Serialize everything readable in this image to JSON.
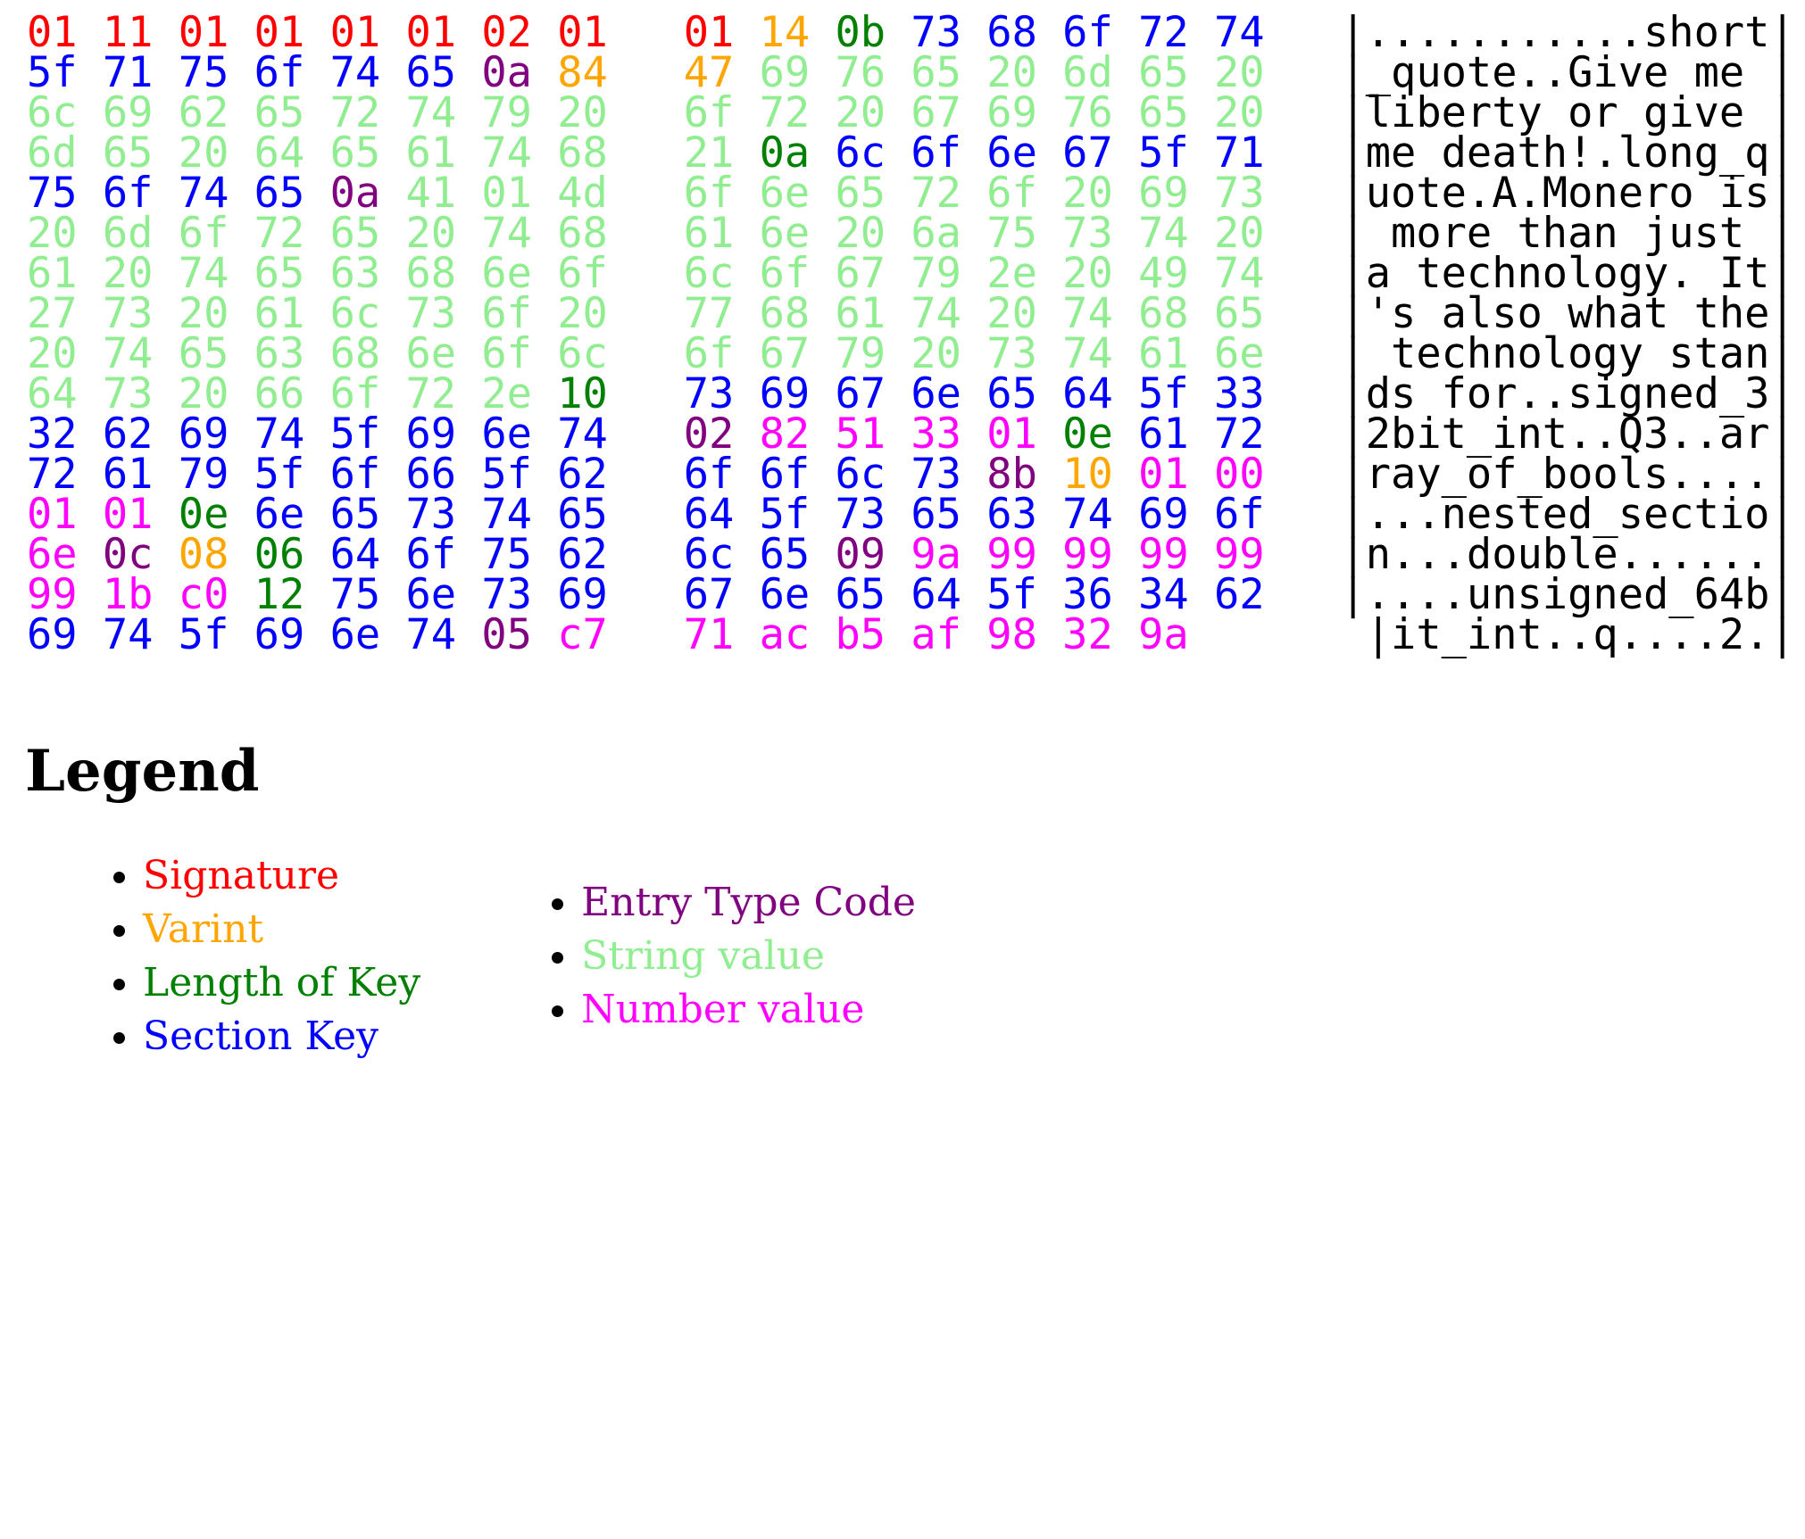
{
  "palette": {
    "sig": "#ff0000",
    "var": "#ffa500",
    "len": "#008000",
    "key": "#0000ff",
    "type": "#800080",
    "str": "#90ee90",
    "num": "#ff00ff",
    "ascii": "#000000"
  },
  "hexdump": {
    "rows": [
      {
        "bytes": [
          "01:sig",
          "11:sig",
          "01:sig",
          "01:sig",
          "01:sig",
          "01:sig",
          "02:sig",
          "01:sig",
          "01:sig",
          "14:var",
          "0b:len",
          "73:key",
          "68:key",
          "6f:key",
          "72:key",
          "74:key"
        ],
        "ascii": "|...........short|"
      },
      {
        "bytes": [
          "5f:key",
          "71:key",
          "75:key",
          "6f:key",
          "74:key",
          "65:key",
          "0a:type",
          "84:var",
          "47:var",
          "69:str",
          "76:str",
          "65:str",
          "20:str",
          "6d:str",
          "65:str",
          "20:str"
        ],
        "ascii": "|_quote..Give me |"
      },
      {
        "bytes": [
          "6c:str",
          "69:str",
          "62:str",
          "65:str",
          "72:str",
          "74:str",
          "79:str",
          "20:str",
          "6f:str",
          "72:str",
          "20:str",
          "67:str",
          "69:str",
          "76:str",
          "65:str",
          "20:str"
        ],
        "ascii": "|liberty or give |"
      },
      {
        "bytes": [
          "6d:str",
          "65:str",
          "20:str",
          "64:str",
          "65:str",
          "61:str",
          "74:str",
          "68:str",
          "21:str",
          "0a:len",
          "6c:key",
          "6f:key",
          "6e:key",
          "67:key",
          "5f:key",
          "71:key"
        ],
        "ascii": "|me death!.long_q|"
      },
      {
        "bytes": [
          "75:key",
          "6f:key",
          "74:key",
          "65:key",
          "0a:type",
          "41:str",
          "01:str",
          "4d:str",
          "6f:str",
          "6e:str",
          "65:str",
          "72:str",
          "6f:str",
          "20:str",
          "69:str",
          "73:str"
        ],
        "ascii": "|uote.A.Monero is|"
      },
      {
        "bytes": [
          "20:str",
          "6d:str",
          "6f:str",
          "72:str",
          "65:str",
          "20:str",
          "74:str",
          "68:str",
          "61:str",
          "6e:str",
          "20:str",
          "6a:str",
          "75:str",
          "73:str",
          "74:str",
          "20:str"
        ],
        "ascii": "| more than just |"
      },
      {
        "bytes": [
          "61:str",
          "20:str",
          "74:str",
          "65:str",
          "63:str",
          "68:str",
          "6e:str",
          "6f:str",
          "6c:str",
          "6f:str",
          "67:str",
          "79:str",
          "2e:str",
          "20:str",
          "49:str",
          "74:str"
        ],
        "ascii": "|a technology. It|"
      },
      {
        "bytes": [
          "27:str",
          "73:str",
          "20:str",
          "61:str",
          "6c:str",
          "73:str",
          "6f:str",
          "20:str",
          "77:str",
          "68:str",
          "61:str",
          "74:str",
          "20:str",
          "74:str",
          "68:str",
          "65:str"
        ],
        "ascii": "|'s also what the|"
      },
      {
        "bytes": [
          "20:str",
          "74:str",
          "65:str",
          "63:str",
          "68:str",
          "6e:str",
          "6f:str",
          "6c:str",
          "6f:str",
          "67:str",
          "79:str",
          "20:str",
          "73:str",
          "74:str",
          "61:str",
          "6e:str"
        ],
        "ascii": "| technology stan|"
      },
      {
        "bytes": [
          "64:str",
          "73:str",
          "20:str",
          "66:str",
          "6f:str",
          "72:str",
          "2e:str",
          "10:len",
          "73:key",
          "69:key",
          "67:key",
          "6e:key",
          "65:key",
          "64:key",
          "5f:key",
          "33:key"
        ],
        "ascii": "|ds for..signed_3|"
      },
      {
        "bytes": [
          "32:key",
          "62:key",
          "69:key",
          "74:key",
          "5f:key",
          "69:key",
          "6e:key",
          "74:key",
          "02:type",
          "82:num",
          "51:num",
          "33:num",
          "01:num",
          "0e:len",
          "61:key",
          "72:key"
        ],
        "ascii": "|2bit_int..Q3..ar|"
      },
      {
        "bytes": [
          "72:key",
          "61:key",
          "79:key",
          "5f:key",
          "6f:key",
          "66:key",
          "5f:key",
          "62:key",
          "6f:key",
          "6f:key",
          "6c:key",
          "73:key",
          "8b:type",
          "10:var",
          "01:num",
          "00:num"
        ],
        "ascii": "|ray_of_bools....|"
      },
      {
        "bytes": [
          "01:num",
          "01:num",
          "0e:len",
          "6e:key",
          "65:key",
          "73:key",
          "74:key",
          "65:key",
          "64:key",
          "5f:key",
          "73:key",
          "65:key",
          "63:key",
          "74:key",
          "69:key",
          "6f:key"
        ],
        "ascii": "|...nested_sectio|"
      },
      {
        "bytes": [
          "6e:num",
          "0c:type",
          "08:var",
          "06:len",
          "64:key",
          "6f:key",
          "75:key",
          "62:key",
          "6c:key",
          "65:key",
          "09:type",
          "9a:num",
          "99:num",
          "99:num",
          "99:num",
          "99:num"
        ],
        "ascii": "|n...double......|"
      },
      {
        "bytes": [
          "99:num",
          "1b:num",
          "c0:num",
          "12:len",
          "75:key",
          "6e:key",
          "73:key",
          "69:key",
          "67:key",
          "6e:key",
          "65:key",
          "64:key",
          "5f:key",
          "36:key",
          "34:key",
          "62:key"
        ],
        "ascii": "|....unsigned_64b|"
      },
      {
        "bytes": [
          "69:key",
          "74:key",
          "5f:key",
          "69:key",
          "6e:key",
          "74:key",
          "05:type",
          "c7:num",
          "71:num",
          "ac:num",
          "b5:num",
          "af:num",
          "98:num",
          "32:num",
          "9a:num"
        ],
        "ascii": "|it_int..q....2.|"
      }
    ]
  },
  "legend": {
    "title": "Legend",
    "columns": [
      {
        "items": [
          {
            "label": "Signature",
            "c": "sig"
          },
          {
            "label": "Varint",
            "c": "var"
          },
          {
            "label": "Length of Key",
            "c": "len"
          },
          {
            "label": "Section Key",
            "c": "key"
          }
        ]
      },
      {
        "items": [
          {
            "label": "Entry Type Code",
            "c": "type"
          },
          {
            "label": "String value",
            "c": "str"
          },
          {
            "label": "Number value",
            "c": "num"
          }
        ]
      }
    ]
  }
}
